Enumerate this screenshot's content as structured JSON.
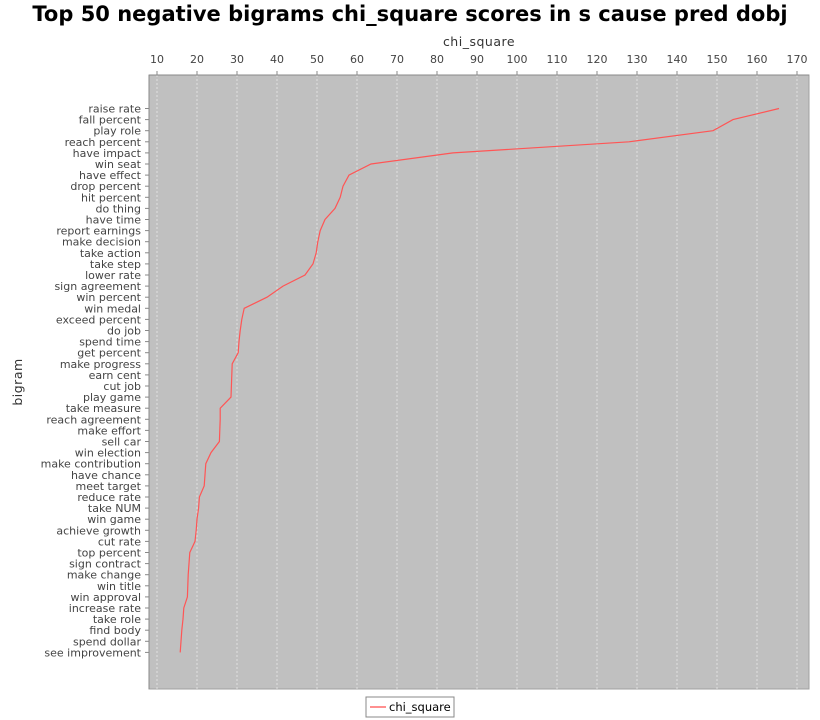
{
  "chart_data": {
    "type": "line",
    "title": "Top 50 negative bigrams chi_square scores in s cause pred dobj",
    "xlabel": "chi_square",
    "ylabel": "bigram",
    "xlim": [
      8,
      173
    ],
    "x_ticks": [
      10,
      20,
      30,
      40,
      50,
      60,
      70,
      80,
      90,
      100,
      110,
      120,
      130,
      140,
      150,
      160,
      170
    ],
    "x_axis_position": "top",
    "orientation": "horizontal",
    "grid": true,
    "legend_position": "bottom",
    "plot_background": "#c0c0c0",
    "series": [
      {
        "name": "chi_square",
        "color": "#ff5555",
        "categories": [
          "raise rate",
          "fall percent",
          "play role",
          "reach percent",
          "have impact",
          "win seat",
          "have effect",
          "drop percent",
          "hit percent",
          "do thing",
          "have time",
          "report earnings",
          "make decision",
          "take action",
          "take step",
          "lower rate",
          "sign agreement",
          "win percent",
          "win medal",
          "exceed percent",
          "do job",
          "spend time",
          "get percent",
          "make progress",
          "earn cent",
          "cut job",
          "play game",
          "take measure",
          "reach agreement",
          "make effort",
          "sell car",
          "win election",
          "make contribution",
          "have chance",
          "meet target",
          "reduce rate",
          "take NUM",
          "win game",
          "achieve growth",
          "cut rate",
          "top percent",
          "sign contract",
          "make change",
          "win title",
          "win approval",
          "increase rate",
          "take role",
          "find body",
          "spend dollar",
          "see improvement"
        ],
        "values": [
          165.5,
          154.0,
          149.0,
          128.0,
          84.0,
          63.5,
          58.0,
          56.5,
          55.8,
          54.5,
          52.0,
          50.8,
          50.2,
          49.8,
          49.0,
          47.0,
          41.5,
          37.5,
          31.8,
          31.2,
          30.8,
          30.5,
          30.3,
          28.8,
          28.7,
          28.6,
          28.5,
          25.8,
          25.8,
          25.7,
          25.6,
          23.5,
          22.2,
          22.0,
          21.8,
          20.6,
          20.4,
          20.0,
          19.8,
          19.5,
          18.2,
          18.0,
          17.8,
          17.7,
          17.6,
          16.7,
          16.5,
          16.2,
          16.0,
          15.8
        ]
      }
    ]
  }
}
